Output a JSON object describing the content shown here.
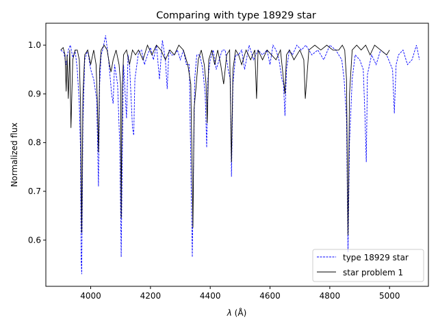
{
  "chart_data": {
    "type": "line",
    "title": "Comparing with type 18929 star",
    "xlabel_symbol": "λ",
    "xlabel_unit": "(Å)",
    "ylabel": "Normalized flux",
    "xlim": [
      3850,
      5130
    ],
    "ylim": [
      0.505,
      1.045
    ],
    "xticks": [
      4000,
      4200,
      4400,
      4600,
      4800,
      5000
    ],
    "yticks": [
      0.6,
      0.7,
      0.8,
      0.9,
      1.0
    ],
    "grid": false,
    "legend_position": "bottom-right",
    "series": [
      {
        "name": "type 18929 star",
        "color": "#0000ff",
        "style": "dashed",
        "x": [
          3900,
          3910,
          3918,
          3925,
          3932,
          3940,
          3948,
          3955,
          3962,
          3966,
          3968,
          3970,
          3974,
          3980,
          3990,
          4000,
          4010,
          4020,
          4026,
          4030,
          4035,
          4040,
          4050,
          4060,
          4070,
          4075,
          4080,
          4090,
          4097,
          4102,
          4106,
          4110,
          4120,
          4125,
          4130,
          4140,
          4144,
          4148,
          4160,
          4170,
          4180,
          4190,
          4200,
          4210,
          4220,
          4230,
          4240,
          4250,
          4256,
          4262,
          4270,
          4280,
          4290,
          4300,
          4310,
          4320,
          4330,
          4336,
          4340,
          4343,
          4348,
          4355,
          4365,
          4375,
          4383,
          4388,
          4392,
          4400,
          4410,
          4420,
          4430,
          4440,
          4450,
          4460,
          4467,
          4471,
          4476,
          4485,
          4495,
          4505,
          4515,
          4530,
          4545,
          4560,
          4575,
          4590,
          4600,
          4610,
          4620,
          4630,
          4640,
          4645,
          4650,
          4655,
          4665,
          4675,
          4690,
          4705,
          4720,
          4740,
          4760,
          4780,
          4800,
          4820,
          4840,
          4848,
          4856,
          4861,
          4866,
          4875,
          4885,
          4900,
          4912,
          4918,
          4922,
          4926,
          4940,
          4955,
          4970,
          4990,
          5010,
          5016,
          5022,
          5030,
          5045,
          5060,
          5075,
          5090,
          5100
        ],
        "y": [
          0.99,
          0.985,
          0.96,
          0.99,
          1.0,
          0.975,
          0.99,
          0.95,
          0.88,
          0.78,
          0.56,
          0.53,
          0.84,
          0.97,
          0.99,
          0.95,
          0.93,
          0.89,
          0.71,
          0.92,
          0.98,
          0.99,
          1.02,
          0.97,
          0.9,
          0.88,
          0.96,
          0.92,
          0.8,
          0.565,
          0.78,
          0.96,
          0.85,
          0.98,
          0.96,
          0.83,
          0.815,
          0.93,
          0.985,
          0.99,
          0.96,
          0.98,
          0.995,
          0.97,
          1.0,
          0.93,
          1.01,
          0.97,
          0.91,
          0.99,
          0.98,
          0.98,
          0.99,
          0.97,
          0.99,
          0.96,
          0.96,
          0.72,
          0.565,
          0.7,
          0.93,
          0.98,
          0.98,
          0.95,
          0.9,
          0.79,
          0.93,
          0.97,
          0.99,
          0.95,
          0.97,
          0.99,
          0.99,
          0.95,
          0.93,
          0.73,
          0.92,
          0.98,
          0.98,
          0.99,
          0.95,
          1.0,
          0.97,
          0.99,
          0.98,
          0.99,
          0.96,
          1.0,
          0.99,
          0.97,
          0.93,
          0.92,
          0.855,
          0.95,
          0.99,
          0.98,
          1.0,
          0.99,
          1.0,
          0.98,
          0.99,
          0.97,
          1.0,
          0.99,
          0.97,
          0.93,
          0.85,
          0.575,
          0.8,
          0.93,
          0.98,
          0.97,
          0.95,
          0.85,
          0.76,
          0.94,
          0.98,
          0.96,
          0.99,
          0.98,
          0.95,
          0.86,
          0.96,
          0.98,
          0.99,
          0.96,
          0.97,
          1.0,
          0.97
        ]
      },
      {
        "name": "star problem 1",
        "color": "#000000",
        "style": "solid",
        "x": [
          3900,
          3908,
          3914,
          3918,
          3921,
          3925,
          3930,
          3934,
          3940,
          3948,
          3955,
          3962,
          3966,
          3970,
          3974,
          3980,
          3990,
          4000,
          4010,
          4018,
          4022,
          4026,
          4030,
          4035,
          4045,
          4055,
          4063,
          4068,
          4075,
          4085,
          4095,
          4100,
          4102,
          4105,
          4110,
          4120,
          4130,
          4140,
          4150,
          4160,
          4175,
          4190,
          4205,
          4220,
          4235,
          4250,
          4265,
          4280,
          4295,
          4310,
          4325,
          4335,
          4340,
          4342,
          4346,
          4352,
          4360,
          4370,
          4380,
          4386,
          4390,
          4395,
          4405,
          4415,
          4425,
          4435,
          4445,
          4455,
          4465,
          4471,
          4476,
          4485,
          4495,
          4505,
          4520,
          4535,
          4549,
          4555,
          4560,
          4575,
          4590,
          4605,
          4620,
          4635,
          4645,
          4650,
          4655,
          4665,
          4680,
          4700,
          4713,
          4718,
          4730,
          4750,
          4770,
          4790,
          4810,
          4830,
          4842,
          4850,
          4856,
          4861,
          4866,
          4875,
          4890,
          4905,
          4920,
          4935,
          4950,
          4970,
          4990,
          5000
        ],
        "y": [
          0.99,
          0.995,
          0.98,
          0.905,
          0.98,
          0.89,
          0.99,
          0.83,
          0.97,
          0.99,
          0.99,
          0.97,
          0.88,
          0.615,
          0.9,
          0.98,
          0.99,
          0.96,
          0.99,
          0.96,
          0.89,
          0.78,
          0.95,
          0.99,
          1.0,
          0.99,
          0.96,
          0.945,
          0.97,
          0.99,
          0.96,
          0.92,
          0.645,
          0.9,
          0.98,
          0.99,
          0.96,
          0.99,
          0.98,
          0.99,
          0.97,
          1.0,
          0.98,
          1.0,
          0.99,
          0.97,
          0.99,
          0.98,
          1.0,
          0.99,
          0.96,
          0.92,
          0.72,
          0.625,
          0.87,
          0.91,
          0.97,
          0.99,
          0.96,
          0.92,
          0.84,
          0.97,
          0.99,
          0.96,
          0.99,
          0.96,
          0.92,
          0.98,
          0.99,
          0.76,
          0.95,
          0.99,
          0.98,
          0.96,
          0.99,
          0.97,
          0.99,
          0.89,
          0.99,
          0.97,
          0.99,
          0.98,
          0.97,
          0.99,
          0.93,
          0.9,
          0.98,
          0.99,
          0.97,
          0.99,
          0.97,
          0.89,
          0.99,
          1.0,
          0.99,
          1.0,
          0.99,
          0.99,
          1.0,
          0.99,
          0.93,
          0.61,
          0.9,
          0.99,
          1.0,
          0.99,
          1.0,
          0.98,
          1.0,
          0.99,
          0.98,
          0.99
        ]
      }
    ]
  }
}
